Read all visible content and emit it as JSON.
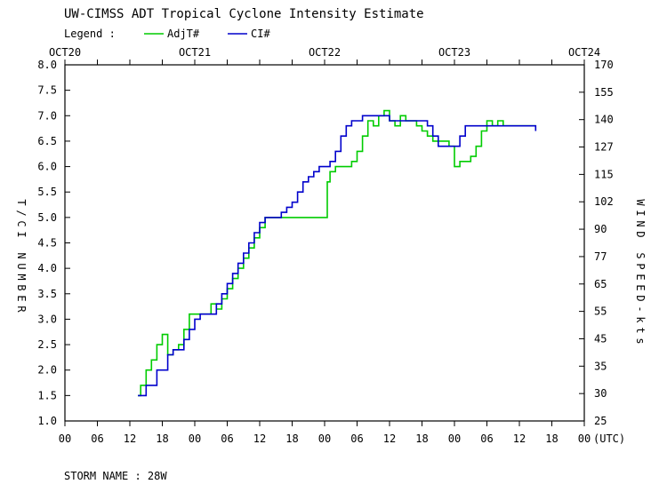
{
  "title": "UW-CIMSS ADT Tropical Cyclone Intensity Estimate",
  "legend": {
    "label": "Legend :",
    "items": [
      {
        "name": "AdjT#",
        "color": "#00cc00"
      },
      {
        "name": "CI#",
        "color": "#0000cc"
      }
    ]
  },
  "storm_name": "STORM NAME : 28W",
  "chart_data": {
    "type": "line",
    "title": "UW-CIMSS ADT Tropical Cyclone Intensity Estimate",
    "xlabel_suffix": "(UTC)",
    "ylabel_left": "T/CI NUMBER",
    "ylabel_right": "WIND SPEED-kts",
    "xlim": [
      0,
      96
    ],
    "ylim": [
      1.0,
      8.0
    ],
    "x_tick_labels": [
      "00",
      "06",
      "12",
      "18",
      "00",
      "06",
      "12",
      "18",
      "00",
      "06",
      "12",
      "18",
      "00",
      "06",
      "12",
      "18",
      "00"
    ],
    "x_ticks_hours": [
      0,
      6,
      12,
      18,
      24,
      30,
      36,
      42,
      48,
      54,
      60,
      66,
      72,
      78,
      84,
      90,
      96
    ],
    "date_labels": [
      {
        "label": "OCT20",
        "hour": 0
      },
      {
        "label": "OCT21",
        "hour": 24
      },
      {
        "label": "OCT22",
        "hour": 48
      },
      {
        "label": "OCT23",
        "hour": 72
      },
      {
        "label": "OCT24",
        "hour": 96
      }
    ],
    "y_ticks_left": [
      "1.0",
      "1.5",
      "2.0",
      "2.5",
      "3.0",
      "3.5",
      "4.0",
      "4.5",
      "5.0",
      "5.5",
      "6.0",
      "6.5",
      "7.0",
      "7.5",
      "8.0"
    ],
    "y_ticks_right": [
      "25",
      "30",
      "35",
      "45",
      "55",
      "65",
      "77",
      "90",
      "102",
      "115",
      "127",
      "140",
      "155",
      "170"
    ],
    "series": [
      {
        "name": "AdjT#",
        "color": "#00cc00",
        "x": [
          13.5,
          14,
          15,
          16,
          17,
          18,
          19,
          19.5,
          20,
          21,
          22,
          23,
          24,
          25,
          26,
          27,
          28,
          29,
          30,
          31,
          32,
          33,
          34,
          35,
          36,
          37,
          38,
          39,
          40,
          41,
          42,
          43,
          44,
          45,
          46,
          47,
          48,
          48.5,
          49,
          50,
          51,
          52,
          53,
          54,
          55,
          56,
          57,
          58,
          59,
          60,
          61,
          62,
          63,
          64,
          65,
          66,
          67,
          68,
          69,
          70,
          71,
          72,
          73,
          74,
          75,
          76,
          77,
          78,
          79,
          80,
          81,
          82,
          83,
          84,
          85,
          86,
          87
        ],
        "y": [
          1.5,
          1.7,
          2.0,
          2.2,
          2.5,
          2.7,
          2.3,
          2.3,
          2.4,
          2.5,
          2.8,
          3.1,
          3.1,
          3.1,
          3.1,
          3.3,
          3.2,
          3.4,
          3.6,
          3.8,
          4.0,
          4.2,
          4.4,
          4.6,
          4.8,
          5.0,
          5.0,
          5.0,
          5.0,
          5.0,
          5.0,
          5.0,
          5.0,
          5.0,
          5.0,
          5.0,
          5.0,
          5.7,
          5.9,
          6.0,
          6.0,
          6.0,
          6.1,
          6.3,
          6.6,
          6.9,
          6.8,
          7.0,
          7.1,
          6.9,
          6.8,
          7.0,
          6.9,
          6.9,
          6.8,
          6.7,
          6.6,
          6.5,
          6.5,
          6.5,
          6.4,
          6.0,
          6.1,
          6.1,
          6.2,
          6.4,
          6.7,
          6.9,
          6.8,
          6.9,
          6.8,
          6.8,
          6.8,
          6.8,
          6.8,
          6.8,
          6.8
        ]
      },
      {
        "name": "CI#",
        "color": "#0000cc",
        "x": [
          13.5,
          15,
          17,
          19,
          20,
          21,
          22,
          23,
          24,
          25,
          26,
          27,
          28,
          29,
          30,
          31,
          32,
          33,
          34,
          35,
          36,
          37,
          38,
          39,
          40,
          41,
          42,
          43,
          44,
          45,
          46,
          47,
          48,
          49,
          50,
          51,
          52,
          53,
          54,
          55,
          56,
          57,
          58,
          59,
          60,
          61,
          62,
          63,
          64,
          65,
          66,
          67,
          68,
          69,
          70,
          71,
          72,
          73,
          74,
          75,
          76,
          77,
          78,
          79,
          80,
          81,
          82,
          83,
          84,
          85,
          86,
          87
        ],
        "y": [
          1.5,
          1.7,
          2.0,
          2.3,
          2.4,
          2.4,
          2.6,
          2.8,
          3.0,
          3.1,
          3.1,
          3.1,
          3.3,
          3.5,
          3.7,
          3.9,
          4.1,
          4.3,
          4.5,
          4.7,
          4.9,
          5.0,
          5.0,
          5.0,
          5.1,
          5.2,
          5.3,
          5.5,
          5.7,
          5.8,
          5.9,
          6.0,
          6.0,
          6.1,
          6.3,
          6.6,
          6.8,
          6.9,
          6.9,
          7.0,
          7.0,
          7.0,
          7.0,
          7.0,
          6.9,
          6.9,
          6.9,
          6.9,
          6.9,
          6.9,
          6.9,
          6.8,
          6.6,
          6.4,
          6.4,
          6.4,
          6.4,
          6.6,
          6.8,
          6.8,
          6.8,
          6.8,
          6.8,
          6.8,
          6.8,
          6.8,
          6.8,
          6.8,
          6.8,
          6.8,
          6.8,
          6.7
        ]
      }
    ]
  }
}
